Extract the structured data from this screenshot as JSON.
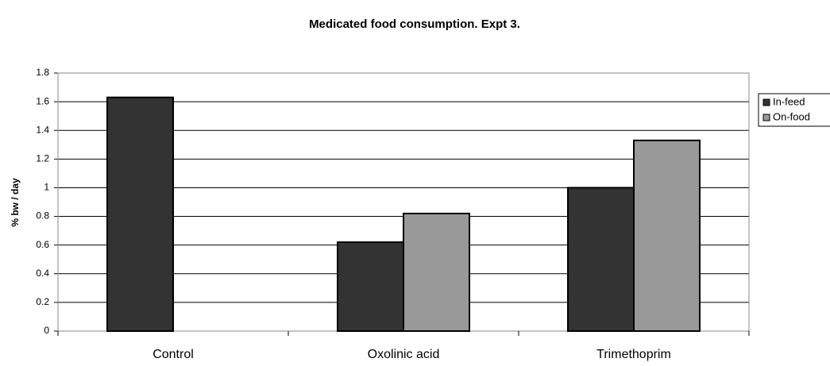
{
  "chart_data": {
    "type": "bar",
    "title": "Medicated food consumption. Expt 3.",
    "y_label": "% bw / day",
    "categories": [
      "Control",
      "Oxolinic acid",
      "Trimethoprim"
    ],
    "series": [
      {
        "name": "In-feed",
        "color": "#333333",
        "values": [
          1.63,
          0.62,
          1.0
        ]
      },
      {
        "name": "On-food",
        "color": "#999999",
        "values": [
          null,
          0.82,
          1.33
        ]
      }
    ],
    "ylim": [
      0,
      1.8
    ],
    "yticks": [
      0,
      0.2,
      0.4,
      0.6,
      0.8,
      1,
      1.2,
      1.4,
      1.6,
      1.8
    ],
    "grid": true,
    "legend": "right"
  }
}
